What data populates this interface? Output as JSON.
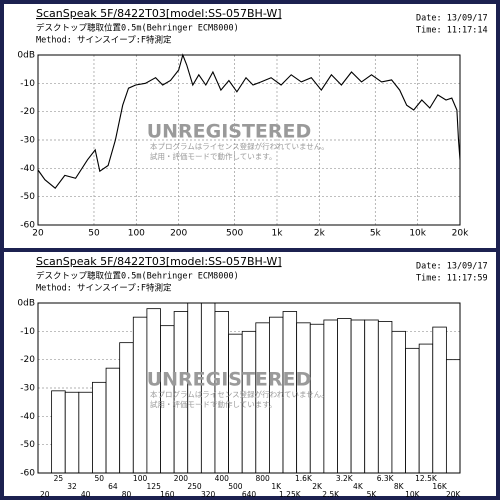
{
  "chart_data": [
    {
      "type": "line",
      "title": "ScanSpeak 5F/8422T03[model:SS-057BH-W]",
      "subtitle": "デスクトップ聴取位置0.5m(Behringer ECM8000)",
      "method": "Method: サインスイープ:F特測定",
      "date": "Date: 13/09/17",
      "time": "Time: 11:17:14",
      "watermark": [
        "UNREGISTERED",
        "本プログラムはライセンス登録が行われていません。",
        "試用・評価モードで動作しています。"
      ],
      "xscale": "log",
      "grid": true,
      "color": "#000000",
      "x": [
        20,
        22.4,
        26.5,
        31,
        37,
        45,
        51,
        55,
        63,
        71,
        80,
        88,
        99,
        116,
        137,
        154,
        175,
        200,
        214,
        228,
        252,
        278,
        312,
        350,
        399,
        455,
        519,
        602,
        675,
        771,
        908,
        1070,
        1262,
        1488,
        1754,
        2067,
        2437,
        2872,
        3386,
        3990,
        4700,
        5540,
        6530,
        7450,
        8360,
        9380,
        10700,
        12200,
        13900,
        15900,
        17500,
        19000,
        19500,
        20000
      ],
      "values": [
        -40.6,
        -44,
        -47,
        -42.5,
        -43.5,
        -37,
        -33.5,
        -41,
        -39,
        -30,
        -17.7,
        -11.7,
        -10.6,
        -10,
        -8,
        -10.6,
        -9,
        -5.3,
        0,
        -3.5,
        -10.6,
        -7,
        -10.6,
        -6,
        -12.4,
        -9,
        -13,
        -8,
        -10.6,
        -9.5,
        -8,
        -10.6,
        -7,
        -9.5,
        -8,
        -12.4,
        -7,
        -10.6,
        -6,
        -9.5,
        -7,
        -9.5,
        -8.8,
        -12.4,
        -17.7,
        -19.4,
        -15.9,
        -18.7,
        -14.1,
        -15.9,
        -15.2,
        -19.4,
        -30,
        -37
      ],
      "xlim": [
        20,
        20000
      ],
      "xticks": [
        20,
        50,
        100,
        200,
        500,
        {
          "value": 1000,
          "label": "1k"
        },
        {
          "value": 2000,
          "label": "2k"
        },
        {
          "value": 5000,
          "label": "5k"
        },
        {
          "value": 10000,
          "label": "10k"
        },
        {
          "value": 20000,
          "label": "20k"
        }
      ],
      "ylim": [
        -60,
        0
      ],
      "yticks": [
        {
          "value": 0,
          "label": "0dB"
        },
        -10,
        -20,
        -30,
        -40,
        -50,
        -60
      ]
    },
    {
      "type": "bar",
      "title": "ScanSpeak 5F/8422T03[model:SS-057BH-W]",
      "subtitle": "デスクトップ聴取位置0.5m(Behringer ECM8000)",
      "method": "Method: サインスイープ:F特測定",
      "date": "Date: 13/09/17",
      "time": "Time: 11:17:59",
      "watermark": [
        "UNREGISTERED",
        "本プログラムはライセンス登録が行われていません。",
        "試用・評価モードで動作しています。"
      ],
      "grid": true,
      "color": "#ffffff",
      "categories": [
        "20",
        "25",
        "32",
        "40",
        "50",
        "64",
        "80",
        "100",
        "125",
        "160",
        "200",
        "250",
        "320",
        "400",
        "500",
        "640",
        "800",
        "1K",
        "1.25K",
        "1.6K",
        "2K",
        "2.5K",
        "3.2K",
        "4K",
        "5K",
        "6.3K",
        "8K",
        "10K",
        "12.5K",
        "16K",
        "20K"
      ],
      "values": [
        null,
        -31,
        -31.5,
        -31.5,
        -28,
        -23,
        -14,
        -5,
        -2,
        -8,
        -3,
        0,
        0,
        -3,
        -11,
        -10,
        -7,
        -5,
        -3,
        -7,
        -7.5,
        -6,
        -5.5,
        -6,
        -6,
        -6.5,
        -10,
        -16,
        -14.5,
        -8.5,
        -20
      ],
      "ylim": [
        -60,
        0
      ],
      "yticks": [
        {
          "value": 0,
          "label": "0dB"
        },
        -10,
        -20,
        -30,
        -40,
        -50,
        -60
      ]
    }
  ]
}
